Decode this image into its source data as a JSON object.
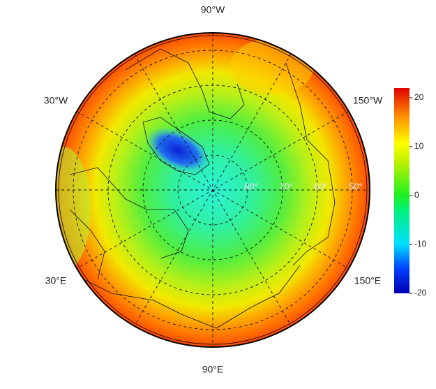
{
  "map": {
    "longitude_labels": [
      "90°W",
      "30°W",
      "150°W",
      "30°E",
      "150°E",
      "90°E"
    ],
    "latitude_labels": [
      "80°",
      "70°",
      "60°",
      "50°"
    ]
  },
  "colorbar": {
    "lim": [
      -20,
      22
    ],
    "ticks": [
      20,
      10,
      0,
      -10,
      -20
    ]
  }
}
